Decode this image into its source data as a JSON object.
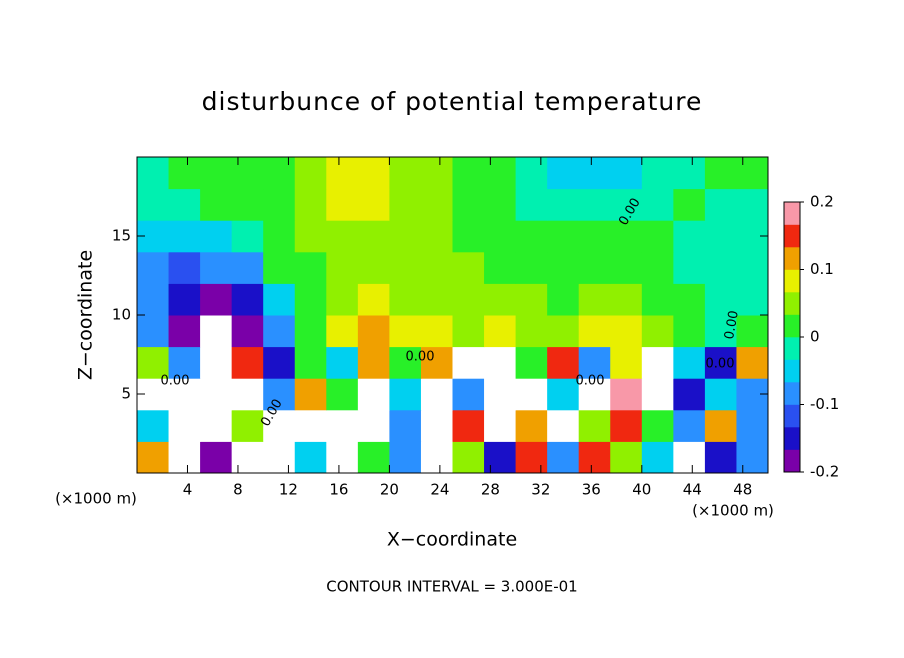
{
  "chart_data": {
    "type": "heatmap",
    "title": "disturbunce of potential temperature",
    "x_label": "X−coordinate",
    "y_label": "Z−coordinate",
    "x_unit": "(×1000 m)",
    "footer": "CONTOUR INTERVAL = 3.000E-01",
    "contour_label": "0.00",
    "xlim": [
      0,
      50
    ],
    "ylim": [
      0,
      20
    ],
    "xticks": [
      4,
      8,
      12,
      16,
      20,
      24,
      28,
      32,
      36,
      40,
      44,
      48
    ],
    "yticks": [
      5,
      10,
      15
    ],
    "clim": [
      -0.2,
      0.2
    ],
    "cticks": [
      -0.2,
      -0.1,
      0,
      0.1,
      0.2
    ],
    "colorscale": [
      "#7a00a8",
      "#1a10c8",
      "#2a50f0",
      "#2a90ff",
      "#00d0f0",
      "#00f0b0",
      "#28f028",
      "#90f000",
      "#e8f000",
      "#f0a000",
      "#f02810",
      "#f898a8"
    ],
    "out_of_range_color": "#ffffff",
    "x": [
      1.25,
      3.75,
      6.25,
      8.75,
      11.25,
      13.75,
      16.25,
      18.75,
      21.25,
      23.75,
      26.25,
      28.75,
      31.25,
      33.75,
      36.25,
      38.75,
      41.25,
      43.75,
      46.25,
      48.75
    ],
    "y": [
      1,
      3,
      5,
      7,
      9,
      11,
      13,
      15,
      17,
      19
    ],
    "z": [
      [
        0.1,
        0.3,
        -0.2,
        0.3,
        0.3,
        -0.05,
        0.3,
        0.0,
        -0.1,
        0.3,
        0.05,
        -0.15,
        0.15,
        -0.1,
        0.15,
        0.05,
        -0.05,
        0.3,
        -0.15,
        -0.1
      ],
      [
        -0.05,
        0.3,
        0.3,
        0.05,
        0.3,
        0.3,
        0.3,
        0.3,
        -0.1,
        0.3,
        0.15,
        0.3,
        0.1,
        0.3,
        0.05,
        0.15,
        0.0,
        -0.1,
        0.12,
        -0.1
      ],
      [
        0.3,
        -0.3,
        0.3,
        0.3,
        -0.1,
        0.1,
        0.0,
        0.3,
        -0.05,
        0.3,
        -0.1,
        0.3,
        0.3,
        -0.05,
        0.3,
        0.19,
        0.3,
        -0.15,
        -0.05,
        -0.1
      ],
      [
        0.05,
        -0.1,
        0.3,
        0.15,
        -0.15,
        0.0,
        -0.05,
        0.1,
        0.02,
        0.1,
        0.3,
        0.3,
        0.0,
        0.15,
        -0.1,
        0.08,
        0.3,
        -0.05,
        -0.15,
        0.1
      ],
      [
        -0.09,
        -0.18,
        0.3,
        -0.19,
        -0.1,
        0.02,
        0.09,
        0.11,
        0.08,
        0.07,
        0.06,
        0.08,
        0.05,
        0.04,
        0.07,
        0.09,
        0.04,
        0.01,
        -0.02,
        0.0
      ],
      [
        -0.08,
        -0.15,
        -0.17,
        -0.15,
        -0.05,
        0.03,
        0.06,
        0.07,
        0.06,
        0.05,
        0.04,
        0.06,
        0.04,
        0.03,
        0.05,
        0.06,
        0.03,
        0.0,
        -0.03,
        -0.03
      ],
      [
        -0.08,
        -0.12,
        -0.1,
        -0.08,
        0.0,
        0.03,
        0.04,
        0.05,
        0.05,
        0.04,
        0.04,
        0.03,
        0.02,
        0.01,
        0.02,
        0.02,
        0.0,
        -0.02,
        -0.03,
        -0.03
      ],
      [
        -0.05,
        -0.06,
        -0.05,
        -0.02,
        0.02,
        0.04,
        0.05,
        0.06,
        0.05,
        0.04,
        0.03,
        0.01,
        0.0,
        0.0,
        0.0,
        0.01,
        0.0,
        -0.01,
        -0.02,
        -0.02
      ],
      [
        -0.03,
        -0.02,
        0.0,
        0.02,
        0.03,
        0.05,
        0.07,
        0.08,
        0.06,
        0.04,
        0.02,
        0.0,
        -0.01,
        -0.03,
        -0.03,
        -0.02,
        -0.01,
        0.0,
        -0.01,
        -0.01
      ],
      [
        -0.01,
        0.0,
        0.01,
        0.02,
        0.03,
        0.04,
        0.07,
        0.09,
        0.06,
        0.04,
        0.02,
        0.0,
        -0.02,
        -0.04,
        -0.06,
        -0.05,
        -0.02,
        -0.01,
        0.0,
        0.0
      ]
    ]
  }
}
